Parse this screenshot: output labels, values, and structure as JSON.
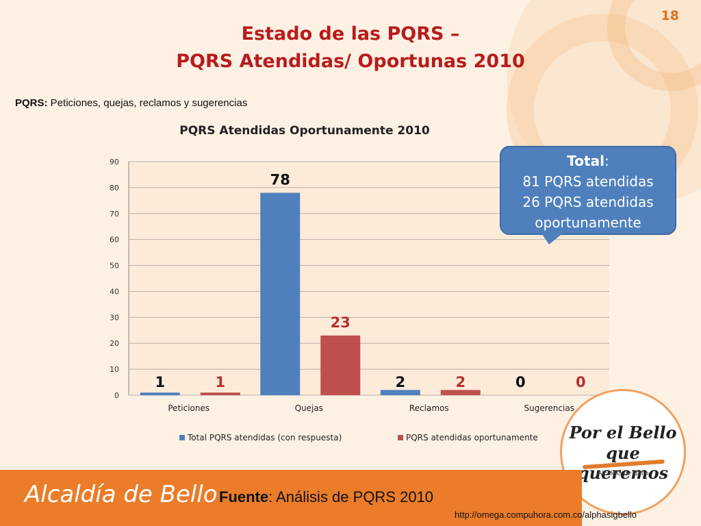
{
  "slide_number": "18",
  "title": {
    "line1": "Estado de las PQRS –",
    "line2": "PQRS Atendidas/ Oportunas 2010"
  },
  "subtitle": {
    "term": "PQRS:",
    "definition": " Peticiones, quejas, reclamos y sugerencias"
  },
  "callout": {
    "total_label": "Total",
    "total_colon": ":",
    "line1": "81 PQRS atendidas",
    "line2": "26 PQRS atendidas",
    "line3": "oportunamente"
  },
  "logo": {
    "line1": "Por el Bello",
    "line2": "que queremos",
    "sub": "Alcaldía de Bello"
  },
  "footer": {
    "brand": "Alcaldía de Bello",
    "source_label": "Fuente",
    "source_text": ": Análisis de PQRS 2010",
    "url": "http://omega.compuhora.com.co/alphasigbello"
  },
  "colors": {
    "series1": "#4f80bd",
    "series2": "#c0504d",
    "title": "#b81c1c",
    "accent": "#ea7c2a"
  },
  "chart_data": {
    "type": "bar",
    "title": "PQRS Atendidas Oportunamente 2010",
    "categories": [
      "Peticiones",
      "Quejas",
      "Reclamos",
      "Sugerencias"
    ],
    "series": [
      {
        "name": "Total PQRS atendidas (con respuesta)",
        "values": [
          1,
          78,
          2,
          0
        ],
        "color": "#4f80bd"
      },
      {
        "name": "PQRS atendidas oportunamente",
        "values": [
          1,
          23,
          2,
          0
        ],
        "color": "#c0504d"
      }
    ],
    "yticks": [
      0,
      10,
      20,
      30,
      40,
      50,
      60,
      70,
      80,
      90
    ],
    "ylim": [
      0,
      90
    ],
    "grid": true,
    "legend": "bottom",
    "data_labels": true
  }
}
